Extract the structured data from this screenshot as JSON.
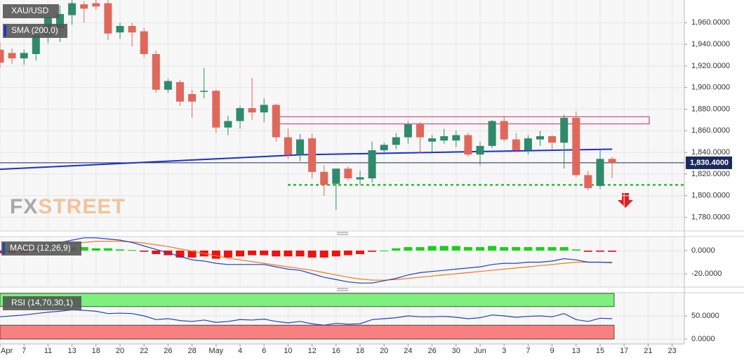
{
  "chart_data": {
    "type": "candlestick",
    "symbol": "XAU/USD",
    "watermark": [
      "FX",
      "STREET"
    ],
    "categories": [
      "Apr",
      null,
      "7",
      null,
      "11",
      null,
      "13",
      null,
      "18",
      null,
      "20",
      null,
      "22",
      null,
      "26",
      null,
      "28",
      null,
      "May",
      null,
      "4",
      null,
      "6",
      null,
      "10",
      null,
      "12",
      null,
      "16",
      null,
      "18",
      null,
      "20",
      null,
      "24",
      null,
      "26",
      null,
      "30",
      null,
      "Jun",
      null,
      "3",
      null,
      "7",
      null,
      "9",
      null,
      "13",
      null,
      "15",
      null,
      "17",
      null,
      "21",
      null,
      "23"
    ],
    "open": [
      1935,
      1932,
      1927,
      1931,
      1948,
      1955,
      1967,
      1977,
      1978,
      1978,
      1951,
      1957,
      1952,
      1931,
      1898,
      1905,
      1894,
      1896,
      1897,
      1863,
      1869,
      1881,
      1877,
      1884,
      1854,
      1838,
      1853,
      1822,
      1811,
      1825,
      1815,
      1816,
      1842,
      1847,
      1854,
      1866,
      1850,
      1851,
      1851,
      1856,
      1838,
      1846,
      1869,
      1852,
      1842,
      1852,
      1855,
      1849,
      1872,
      1819,
      1809,
      1834,
      null,
      null,
      null,
      null,
      null
    ],
    "high": [
      1942,
      1936,
      1935,
      1952,
      1975,
      1976,
      1981,
      1980,
      1981,
      1981,
      1960,
      1960,
      1955,
      1934,
      1908,
      1907,
      1898,
      1918,
      1898,
      1874,
      1883,
      1909,
      1890,
      1885,
      1862,
      1857,
      1857,
      1828,
      1825,
      1827,
      1823,
      1850,
      1849,
      1858,
      1869,
      1868,
      1856,
      1862,
      1860,
      1858,
      1850,
      1870,
      1873,
      1858,
      1856,
      1860,
      1856,
      1875,
      1878,
      1823,
      1843,
      1836,
      null,
      null,
      null,
      null,
      null
    ],
    "low": [
      1918,
      1922,
      1921,
      1925,
      1941,
      1942,
      1958,
      1960,
      1972,
      1944,
      1945,
      1938,
      1928,
      1895,
      1895,
      1883,
      1872,
      1890,
      1858,
      1856,
      1862,
      1870,
      1868,
      1850,
      1834,
      1832,
      1816,
      1800,
      1787,
      1814,
      1810,
      1812,
      1838,
      1843,
      1848,
      1839,
      1841,
      1848,
      1845,
      1836,
      1828,
      1844,
      1850,
      1840,
      1838,
      1846,
      1843,
      1825,
      1817,
      1805,
      1806,
      1816,
      null,
      null,
      null,
      null,
      null
    ],
    "close": [
      1923,
      1927,
      1932,
      1949,
      1965,
      1968,
      1978,
      1973,
      1975,
      1950,
      1957,
      1951,
      1931,
      1898,
      1906,
      1887,
      1887,
      1897,
      1863,
      1869,
      1881,
      1877,
      1884,
      1854,
      1838,
      1852,
      1822,
      1810,
      1825,
      1816,
      1817,
      1842,
      1847,
      1854,
      1866,
      1854,
      1853,
      1855,
      1856,
      1838,
      1846,
      1869,
      1852,
      1842,
      1853,
      1855,
      1849,
      1872,
      1819,
      1807,
      1834,
      1830.4,
      null,
      null,
      null,
      null,
      null
    ],
    "up_color": "#2f8a6c",
    "down_color": "#e0675b",
    "sma": {
      "name": "SMA (200,0)",
      "color": "#1b2fd1",
      "x": [
        0,
        25,
        51
      ],
      "values": [
        1824.4,
        1837.8,
        1843
      ]
    },
    "last_price": {
      "value": 1830.4,
      "label": "1,830.4000"
    },
    "resistance_zone": [
      1866.4,
      1873
    ],
    "support": 1810,
    "ylim": [
      1768,
      1981
    ],
    "yticks": [
      {
        "value": 1780,
        "label": "1,780.0000"
      },
      {
        "value": 1800,
        "label": "1,800.0000"
      },
      {
        "value": 1820,
        "label": "1,820.0000"
      },
      {
        "value": 1840,
        "label": "1,840.0000"
      },
      {
        "value": 1860,
        "label": "1,860.0000"
      },
      {
        "value": 1880,
        "label": "1,880.0000"
      },
      {
        "value": 1900,
        "label": "1,900.0000"
      },
      {
        "value": 1920,
        "label": "1,920.0000"
      },
      {
        "value": 1940,
        "label": "1,940.0000"
      },
      {
        "value": 1960,
        "label": "1,960.0000"
      }
    ],
    "grid": true,
    "macd": {
      "name": "MACD (12,26,9)",
      "ylim": [
        -30.9,
        11.5
      ],
      "yticks": [
        {
          "value": 0,
          "label": "0.0000"
        },
        {
          "value": -20,
          "label": "-20.0000"
        }
      ],
      "histogram": [
        -2,
        -2,
        -2,
        -1,
        1,
        2,
        3,
        3,
        2,
        2,
        1,
        0.5,
        -1,
        -3,
        -4,
        -6,
        -6,
        -5,
        -7,
        -6,
        -5,
        -4,
        -4,
        -5,
        -5,
        -5,
        -6,
        -6,
        -5,
        -4,
        -3,
        -1,
        0,
        2,
        3,
        3,
        4,
        4,
        4,
        3,
        3,
        4,
        3,
        3,
        3,
        3,
        3,
        3,
        1,
        -1,
        -1,
        -1,
        null,
        null,
        null,
        null,
        null
      ],
      "macd_line": [
        -2,
        0,
        1,
        3,
        5,
        7,
        9,
        11,
        11,
        10,
        9,
        7,
        4,
        1,
        -2,
        -5,
        -8,
        -9,
        -11,
        -12,
        -12,
        -12,
        -12,
        -14,
        -16,
        -17,
        -20,
        -23,
        -25,
        -27,
        -28,
        -28,
        -26,
        -24,
        -21,
        -19,
        -18,
        -17,
        -16,
        -15,
        -14,
        -12,
        -11,
        -11,
        -10,
        -10,
        -9,
        -7,
        -8,
        -10,
        -10,
        -10.5,
        null,
        null,
        null,
        null,
        null
      ],
      "signal_line": [
        0,
        1,
        2,
        3,
        4,
        5,
        6,
        7,
        8,
        8,
        8,
        7.5,
        6.5,
        5,
        3.5,
        1.5,
        -0.5,
        -2.5,
        -4.5,
        -6.5,
        -8,
        -9.5,
        -11,
        -12.5,
        -14,
        -15.5,
        -17,
        -19,
        -21,
        -23,
        -24.5,
        -25.5,
        -25.5,
        -25,
        -24,
        -23,
        -22,
        -21,
        -20,
        -19,
        -18,
        -17,
        -16,
        -15,
        -14,
        -13,
        -12,
        -11,
        -10,
        -10,
        -10,
        -10,
        null,
        null,
        null,
        null,
        null
      ]
    },
    "rsi": {
      "name": "RSI (14,70,30,1)",
      "ylim": [
        -10.6,
        98.5
      ],
      "yticks": [
        {
          "value": 0,
          "label": "0.0000"
        },
        {
          "value": 50,
          "label": "50.0000"
        }
      ],
      "overbought": 70,
      "oversold": 30,
      "values": [
        48,
        50,
        52,
        55,
        58,
        60,
        63,
        62,
        60,
        55,
        56,
        55,
        50,
        42,
        44,
        40,
        38,
        41,
        36,
        38,
        42,
        41,
        43,
        38,
        35,
        38,
        33,
        30,
        34,
        32,
        33,
        42,
        44,
        46,
        50,
        48,
        48,
        49,
        47,
        44,
        46,
        52,
        50,
        47,
        49,
        50,
        48,
        55,
        42,
        38,
        45,
        44,
        null,
        null,
        null,
        null,
        null
      ]
    }
  }
}
